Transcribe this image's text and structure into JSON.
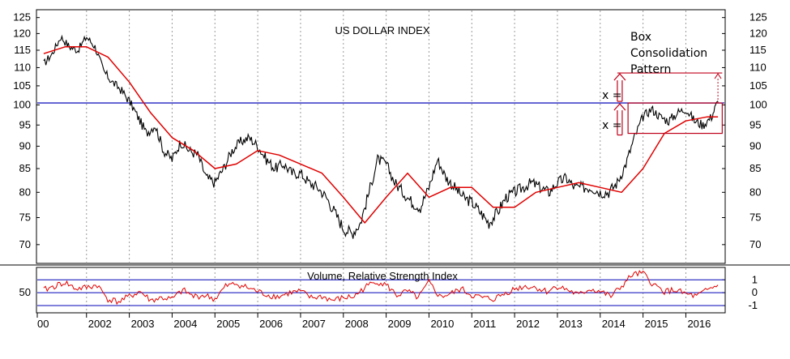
{
  "chart_data": [
    {
      "type": "line",
      "title": "US DOLLAR INDEX",
      "ylim": [
        67,
        127
      ],
      "y_ticks": [
        70,
        75,
        80,
        85,
        90,
        95,
        100,
        105,
        110,
        115,
        120,
        125
      ],
      "x_tick_labels": [
        "00",
        "2002",
        "2003",
        "2004",
        "2005",
        "2006",
        "2007",
        "2008",
        "2009",
        "2010",
        "2011",
        "2012",
        "2013",
        "2014",
        "2015",
        "2016"
      ],
      "grid": "vertical dotted",
      "horizontal_line": 100.5,
      "colors": {
        "price": "#000000",
        "moving_average": "#e00000",
        "reference_line": "#2020c0"
      },
      "series": [
        {
          "key": "price",
          "x": [
            2001.0,
            2001.2,
            2001.4,
            2001.6,
            2001.8,
            2002.0,
            2002.2,
            2002.4,
            2002.6,
            2002.8,
            2003.0,
            2003.2,
            2003.4,
            2003.6,
            2003.8,
            2004.0,
            2004.2,
            2004.4,
            2004.6,
            2004.8,
            2005.0,
            2005.2,
            2005.4,
            2005.6,
            2005.8,
            2006.0,
            2006.2,
            2006.4,
            2006.6,
            2006.8,
            2007.0,
            2007.2,
            2007.4,
            2007.6,
            2007.8,
            2008.0,
            2008.2,
            2008.4,
            2008.6,
            2008.8,
            2009.0,
            2009.2,
            2009.4,
            2009.6,
            2009.8,
            2010.0,
            2010.2,
            2010.4,
            2010.6,
            2010.8,
            2011.0,
            2011.2,
            2011.4,
            2011.6,
            2011.8,
            2012.0,
            2012.2,
            2012.4,
            2012.6,
            2012.8,
            2013.0,
            2013.2,
            2013.4,
            2013.6,
            2013.8,
            2014.0,
            2014.2,
            2014.4,
            2014.6,
            2014.8,
            2015.0,
            2015.2,
            2015.4,
            2015.6,
            2015.8,
            2016.0,
            2016.2,
            2016.4,
            2016.6,
            2016.75
          ],
          "values": [
            111,
            114,
            119,
            116,
            115,
            119,
            116,
            109,
            106,
            104,
            101,
            97,
            93,
            95,
            89,
            87,
            91,
            89,
            88,
            83,
            82,
            85,
            89,
            91,
            92,
            90,
            87,
            85,
            86,
            84,
            84,
            82,
            81,
            79,
            76,
            73,
            72,
            74,
            80,
            87,
            86,
            82,
            80,
            78,
            77,
            81,
            87,
            83,
            81,
            79,
            78,
            76,
            74,
            76,
            79,
            80,
            81,
            82,
            81,
            80,
            82,
            83,
            81,
            81,
            81,
            80,
            80,
            82,
            86,
            92,
            97,
            99,
            97,
            96,
            98,
            99,
            96,
            95,
            97,
            101
          ]
        },
        {
          "key": "moving_average",
          "x": [
            2001.0,
            2001.5,
            2002.0,
            2002.5,
            2003.0,
            2003.5,
            2004.0,
            2004.5,
            2005.0,
            2005.5,
            2006.0,
            2006.5,
            2007.0,
            2007.5,
            2008.0,
            2008.5,
            2009.0,
            2009.5,
            2010.0,
            2010.5,
            2011.0,
            2011.5,
            2012.0,
            2012.5,
            2013.0,
            2013.5,
            2014.0,
            2014.5,
            2015.0,
            2015.5,
            2016.0,
            2016.5,
            2016.75
          ],
          "values": [
            114,
            116,
            116,
            113,
            106,
            98,
            92,
            89,
            85,
            86,
            89,
            88,
            86,
            84,
            79,
            74,
            79,
            84,
            79,
            81,
            81,
            77,
            77,
            80,
            81,
            82,
            81,
            80,
            85,
            93,
            96,
            97,
            97
          ]
        }
      ],
      "annotations": {
        "box_label": [
          "Box",
          "Consolidation",
          "Pattern"
        ],
        "x_labels": [
          "x =",
          "x ="
        ],
        "box_range": [
          93,
          100.5
        ],
        "projection_top": 108.5
      }
    },
    {
      "type": "line",
      "title": "Volume, Relative Strength Index",
      "y_ticks_left": [
        "50"
      ],
      "y_ticks_right": [
        "1",
        "0",
        "-1"
      ],
      "colors": {
        "oscillator": "#e00000",
        "lines": "#2020c0"
      },
      "horizontal_lines": [
        1,
        0,
        -1
      ],
      "series": [
        {
          "key": "oscillator",
          "x": [
            2001.0,
            2001.25,
            2001.5,
            2001.75,
            2002.0,
            2002.25,
            2002.5,
            2002.75,
            2003.0,
            2003.25,
            2003.5,
            2003.75,
            2004.0,
            2004.25,
            2004.5,
            2004.75,
            2005.0,
            2005.25,
            2005.5,
            2005.75,
            2006.0,
            2006.25,
            2006.5,
            2006.75,
            2007.0,
            2007.25,
            2007.5,
            2007.75,
            2008.0,
            2008.25,
            2008.5,
            2008.75,
            2009.0,
            2009.25,
            2009.5,
            2009.75,
            2010.0,
            2010.25,
            2010.5,
            2010.75,
            2011.0,
            2011.25,
            2011.5,
            2011.75,
            2012.0,
            2012.25,
            2012.5,
            2012.75,
            2013.0,
            2013.25,
            2013.5,
            2013.75,
            2014.0,
            2014.25,
            2014.5,
            2014.75,
            2015.0,
            2015.25,
            2015.5,
            2015.75,
            2016.0,
            2016.25,
            2016.5,
            2016.75
          ],
          "values": [
            0.2,
            0.5,
            0.8,
            0.3,
            0.4,
            0.6,
            -0.5,
            -0.7,
            -0.3,
            0.1,
            -0.6,
            -0.4,
            -0.5,
            0.2,
            -0.3,
            -0.2,
            -0.5,
            0.5,
            0.7,
            0.4,
            0.1,
            -0.2,
            -0.3,
            0.0,
            0.1,
            -0.4,
            -0.3,
            -0.6,
            -0.4,
            -0.3,
            0.4,
            0.9,
            0.6,
            -0.2,
            0.1,
            -0.4,
            0.8,
            -0.3,
            -0.1,
            0.3,
            -0.2,
            -0.4,
            -0.5,
            -0.1,
            0.3,
            0.5,
            0.4,
            0.1,
            0.5,
            0.2,
            -0.2,
            0.3,
            0.1,
            -0.3,
            0.5,
            1.4,
            1.5,
            0.6,
            0.1,
            0.2,
            -0.1,
            -0.3,
            0.2,
            0.6
          ]
        }
      ]
    }
  ]
}
